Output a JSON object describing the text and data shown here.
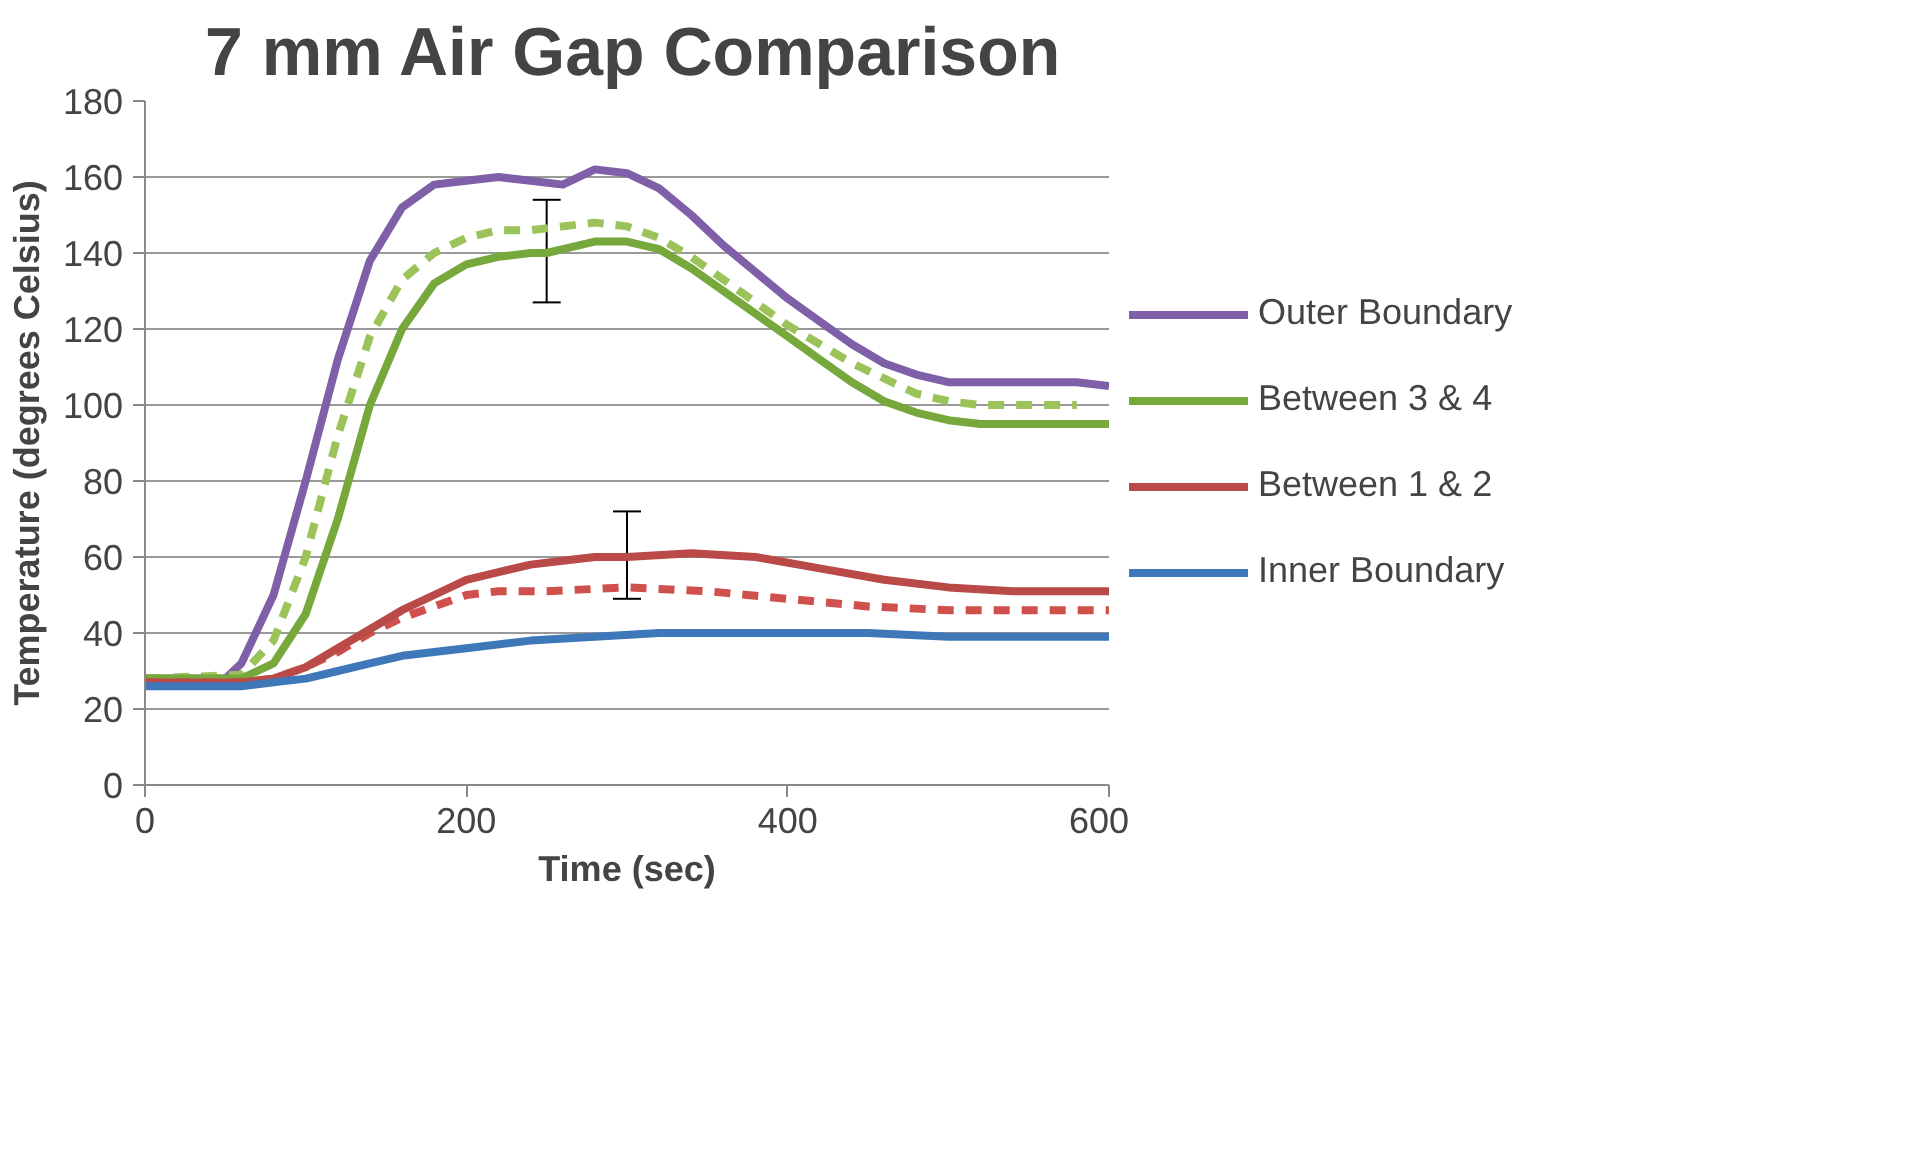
{
  "chart_data": {
    "type": "line",
    "title": "7 mm Air Gap Comparison",
    "xlabel": "Time (sec)",
    "ylabel": "Temperature (degrees Celsius)",
    "xlim": [
      0,
      600
    ],
    "xticks": [
      0,
      200,
      400,
      600
    ],
    "ylim": [
      0,
      180
    ],
    "yticks": [
      0,
      20,
      40,
      60,
      80,
      100,
      120,
      140,
      160,
      180
    ],
    "grid": "y",
    "legend": "right",
    "marker": "none",
    "series": [
      {
        "name": "Outer Boundary",
        "color": "#7f5fa8",
        "line_style": "solid",
        "x": [
          0,
          50,
          60,
          80,
          100,
          120,
          140,
          160,
          180,
          200,
          220,
          240,
          260,
          280,
          300,
          320,
          340,
          360,
          380,
          400,
          420,
          440,
          460,
          480,
          500,
          520,
          540,
          560,
          580,
          600
        ],
        "values": [
          28,
          28,
          32,
          50,
          80,
          112,
          138,
          152,
          158,
          159,
          160,
          159,
          158,
          162,
          161,
          157,
          150,
          142,
          135,
          128,
          122,
          116,
          111,
          108,
          106,
          106,
          106,
          106,
          106,
          105
        ]
      },
      {
        "color": "#9bc35a",
        "line_style": "dashed",
        "x": [
          0,
          60,
          80,
          100,
          120,
          140,
          160,
          180,
          200,
          220,
          240,
          260,
          280,
          300,
          320,
          340,
          360,
          380,
          400,
          420,
          440,
          460,
          480,
          500,
          520,
          540,
          560,
          580
        ],
        "values": [
          28,
          29,
          38,
          60,
          92,
          118,
          133,
          140,
          144,
          146,
          146,
          147,
          148,
          147,
          144,
          139,
          133,
          127,
          121,
          116,
          111,
          107,
          103,
          101,
          100,
          100,
          100,
          100
        ]
      },
      {
        "name": "Between 3 & 4",
        "color": "#77a83c",
        "line_style": "solid",
        "x": [
          0,
          60,
          80,
          100,
          120,
          140,
          160,
          180,
          200,
          220,
          240,
          250,
          260,
          280,
          300,
          320,
          340,
          360,
          380,
          400,
          420,
          440,
          460,
          480,
          500,
          520,
          540,
          560,
          600
        ],
        "values": [
          28,
          28,
          32,
          45,
          70,
          100,
          120,
          132,
          137,
          139,
          140,
          140,
          141,
          143,
          143,
          141,
          136,
          130,
          124,
          118,
          112,
          106,
          101,
          98,
          96,
          95,
          95,
          95,
          95
        ],
        "errors": [
          null,
          null,
          null,
          null,
          null,
          null,
          null,
          null,
          null,
          null,
          null,
          [
            127,
            154
          ],
          null,
          null,
          null,
          null,
          null,
          null,
          null,
          null,
          null,
          null,
          null,
          null,
          null,
          null,
          null,
          null,
          null
        ]
      },
      {
        "color": "#d0504d",
        "line_style": "dashed",
        "x": [
          0,
          60,
          80,
          100,
          120,
          140,
          160,
          180,
          200,
          220,
          250,
          300,
          350,
          400,
          450,
          500,
          550,
          600
        ],
        "values": [
          27,
          27,
          28,
          31,
          35,
          40,
          44,
          47,
          50,
          51,
          51,
          52,
          51,
          49,
          47,
          46,
          46,
          46
        ]
      },
      {
        "name": "Between 1 & 2",
        "color": "#b94a48",
        "line_style": "solid",
        "x": [
          0,
          60,
          80,
          100,
          120,
          140,
          160,
          180,
          200,
          220,
          240,
          260,
          280,
          300,
          340,
          380,
          420,
          460,
          500,
          540,
          600
        ],
        "values": [
          27,
          27,
          28,
          31,
          36,
          41,
          46,
          50,
          54,
          56,
          58,
          59,
          60,
          60,
          61,
          60,
          57,
          54,
          52,
          51,
          51
        ],
        "errors": [
          null,
          null,
          null,
          null,
          null,
          null,
          null,
          null,
          null,
          null,
          null,
          null,
          null,
          [
            49,
            72
          ],
          null,
          null,
          null,
          null,
          null,
          null,
          null
        ]
      },
      {
        "name": "Inner Boundary",
        "color": "#3f78b8",
        "line_style": "solid",
        "x": [
          0,
          60,
          80,
          100,
          120,
          140,
          160,
          180,
          200,
          240,
          280,
          320,
          360,
          400,
          450,
          500,
          550,
          600
        ],
        "values": [
          26,
          26,
          27,
          28,
          30,
          32,
          34,
          35,
          36,
          38,
          39,
          40,
          40,
          40,
          40,
          39,
          39,
          39
        ]
      }
    ]
  }
}
